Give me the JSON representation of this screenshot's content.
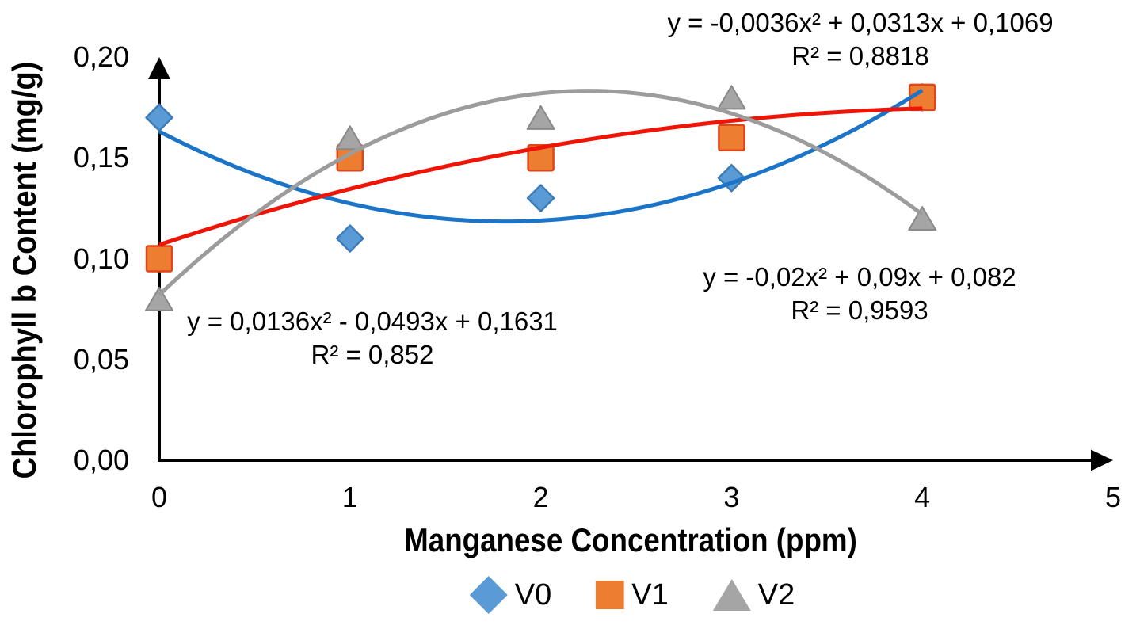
{
  "chart_data": {
    "type": "scatter",
    "title": "",
    "xlabel": "Manganese Concentration (ppm)",
    "ylabel": "Chlorophyll b Content (mg/g)",
    "xlim": [
      0,
      5
    ],
    "ylim": [
      0.0,
      0.2
    ],
    "x_ticks": [
      "0",
      "1",
      "2",
      "3",
      "4",
      "5"
    ],
    "y_ticks": [
      "0,00",
      "0,05",
      "0,10",
      "0,15",
      "0,20"
    ],
    "grid": false,
    "legend_position": "bottom",
    "axis_color": "#000000",
    "x": [
      0,
      1,
      2,
      3,
      4
    ],
    "series": [
      {
        "name": "V0",
        "marker": "diamond",
        "color": "#5B9BD5",
        "border_color": "#3C7CB8",
        "values": [
          0.17,
          0.11,
          0.13,
          0.14,
          0.18
        ],
        "trendline": {
          "type": "polynomial",
          "color": "#1B74C8",
          "coefficients": [
            0.0136,
            -0.0493,
            0.1631
          ],
          "equation": "y = 0,0136x² - 0,0493x + 0,1631",
          "r2": "R² = 0,852"
        }
      },
      {
        "name": "V1",
        "marker": "square",
        "color": "#ED7D31",
        "border_color": "#E1461A",
        "values": [
          0.1,
          0.15,
          0.15,
          0.16,
          0.18
        ],
        "trendline": {
          "type": "polynomial",
          "color": "#EE1507",
          "coefficients": [
            -0.0036,
            0.0313,
            0.1069
          ],
          "equation": "y = -0,0036x² + 0,0313x + 0,1069",
          "r2": "R² = 0,8818"
        }
      },
      {
        "name": "V2",
        "marker": "triangle",
        "color": "#A5A5A5",
        "border_color": "#898989",
        "values": [
          0.08,
          0.16,
          0.17,
          0.18,
          0.12
        ],
        "trendline": {
          "type": "polynomial",
          "color": "#9C9C9C",
          "coefficients": [
            -0.02,
            0.09,
            0.082
          ],
          "equation": "y = -0,02x² + 0,09x + 0,082",
          "r2": "R² = 0,9593"
        }
      }
    ]
  }
}
